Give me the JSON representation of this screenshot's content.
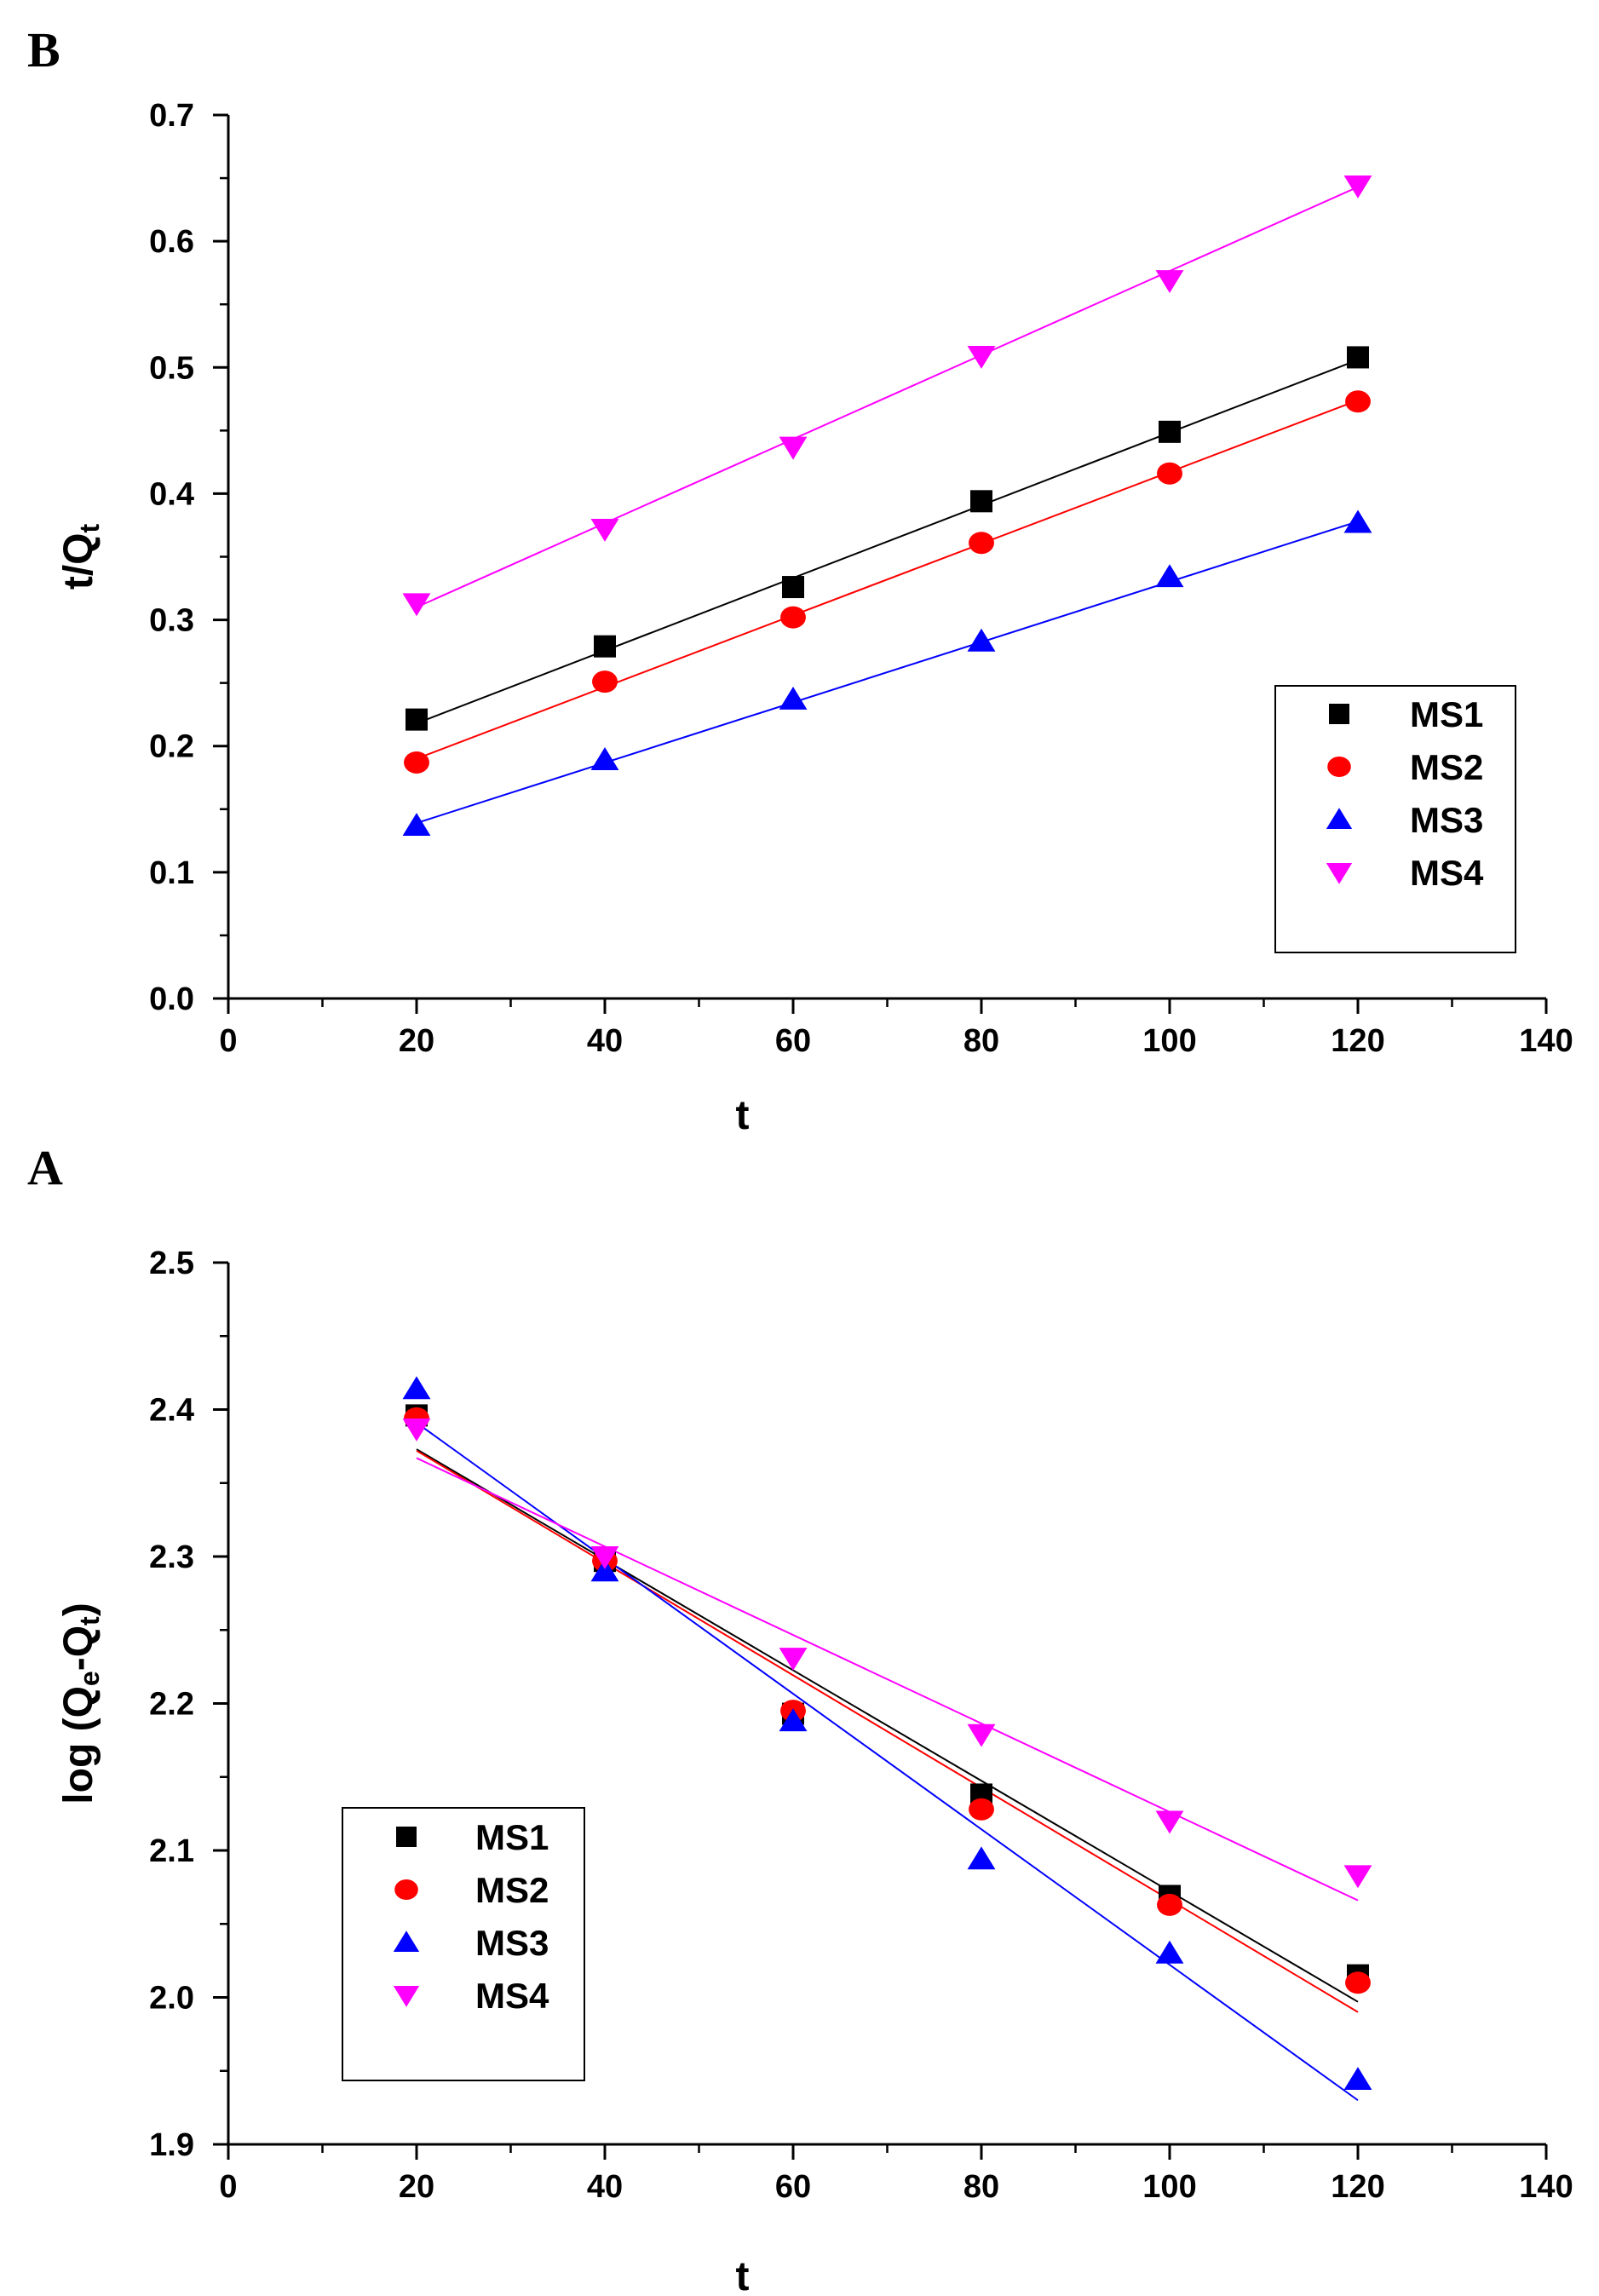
{
  "chart_data": [
    {
      "type": "scatter",
      "panel_label": "B",
      "xlabel": "t",
      "ylabel_main": "t/Q",
      "ylabel_sub": "t",
      "xlim": [
        0,
        140
      ],
      "ylim": [
        0.0,
        0.7
      ],
      "x_ticks": [
        0,
        20,
        40,
        60,
        80,
        100,
        120,
        140
      ],
      "x_tick_labels": [
        "0",
        "20",
        "40",
        "60",
        "80",
        "100",
        "120",
        "140"
      ],
      "y_ticks": [
        0.0,
        0.1,
        0.2,
        0.3,
        0.4,
        0.5,
        0.6,
        0.7
      ],
      "y_tick_labels": [
        "0.0",
        "0.1",
        "0.2",
        "0.3",
        "0.4",
        "0.5",
        "0.6",
        "0.7"
      ],
      "legend_position": "lower-right",
      "x": [
        20,
        40,
        60,
        80,
        100,
        120
      ],
      "series": [
        {
          "name": "MS1",
          "marker": "square",
          "color": "#000000",
          "values": [
            0.221,
            0.279,
            0.326,
            0.394,
            0.449,
            0.508
          ],
          "fit": [
            0.218,
            0.506
          ]
        },
        {
          "name": "MS2",
          "marker": "circle",
          "color": "#ff0000",
          "values": [
            0.187,
            0.251,
            0.302,
            0.361,
            0.416,
            0.473
          ],
          "fit": [
            0.19,
            0.474
          ]
        },
        {
          "name": "MS3",
          "marker": "triangle-up",
          "color": "#0000ff",
          "values": [
            0.137,
            0.189,
            0.237,
            0.283,
            0.334,
            0.377
          ],
          "fit": [
            0.139,
            0.378
          ]
        },
        {
          "name": "MS4",
          "marker": "triangle-down",
          "color": "#ff00ff",
          "values": [
            0.313,
            0.372,
            0.437,
            0.509,
            0.569,
            0.644
          ],
          "fit": [
            0.31,
            0.643
          ]
        }
      ]
    },
    {
      "type": "scatter",
      "panel_label": "A",
      "xlabel": "t",
      "ylabel_main": "log (Q",
      "ylabel_sub1": "e",
      "ylabel_mid": "-Q",
      "ylabel_sub2": "t",
      "ylabel_end": ")",
      "xlim": [
        0,
        140
      ],
      "ylim": [
        1.9,
        2.5
      ],
      "x_ticks": [
        0,
        20,
        40,
        60,
        80,
        100,
        120,
        140
      ],
      "x_tick_labels": [
        "0",
        "20",
        "40",
        "60",
        "80",
        "100",
        "120",
        "140"
      ],
      "y_ticks": [
        1.9,
        2.0,
        2.1,
        2.2,
        2.3,
        2.4,
        2.5
      ],
      "y_tick_labels": [
        "1.9",
        "2.0",
        "2.1",
        "2.2",
        "2.3",
        "2.4",
        "2.5"
      ],
      "legend_position": "lower-left",
      "x": [
        20,
        40,
        60,
        80,
        100,
        120
      ],
      "series": [
        {
          "name": "MS1",
          "marker": "square",
          "color": "#000000",
          "values": [
            2.396,
            2.297,
            2.193,
            2.138,
            2.069,
            2.015
          ],
          "fit": [
            2.373,
            1.997
          ]
        },
        {
          "name": "MS2",
          "marker": "circle",
          "color": "#ff0000",
          "values": [
            2.394,
            2.297,
            2.195,
            2.128,
            2.063,
            2.01
          ],
          "fit": [
            2.372,
            1.99
          ]
        },
        {
          "name": "MS3",
          "marker": "triangle-up",
          "color": "#0000ff",
          "values": [
            2.414,
            2.29,
            2.188,
            2.094,
            2.03,
            1.944
          ],
          "fit": [
            2.391,
            1.93
          ]
        },
        {
          "name": "MS4",
          "marker": "triangle-down",
          "color": "#ff00ff",
          "values": [
            2.387,
            2.3,
            2.231,
            2.179,
            2.12,
            2.083
          ],
          "fit": [
            2.367,
            2.066
          ]
        }
      ]
    }
  ]
}
